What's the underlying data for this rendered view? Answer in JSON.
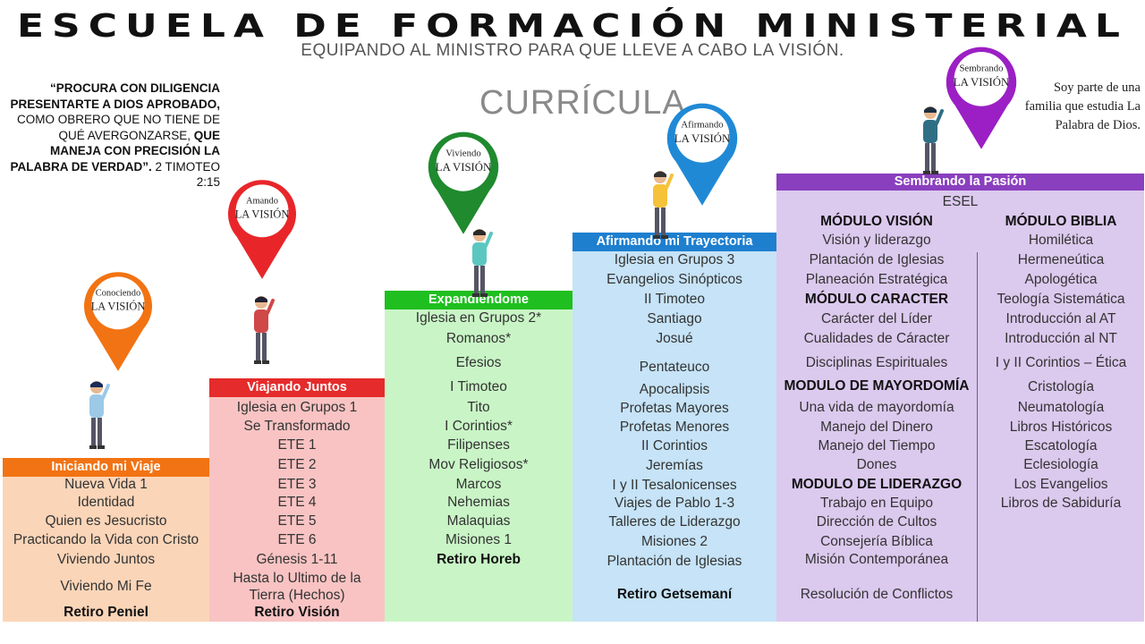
{
  "title": "ESCUELA DE FORMACIÓN MINISTERIAL",
  "subtitle": "EQUIPANDO AL MINISTRO PARA QUE LLEVE A CABO LA VISIÓN.",
  "curriculum_label": "CURRÍCULA",
  "quote": {
    "bold1": "“PROCURA CON DILIGENCIA PRESENTARTE A DIOS APROBADO,",
    "plain1": " COMO OBRERO QUE NO TIENE DE QUÉ AVERGONZARSE, ",
    "bold2": "QUE MANEJA CON PRECISIÓN LA PALABRA DE VERDAD”.",
    "ref": " 2 TIMOTEO 2:15"
  },
  "family_text": "Soy parte de una familia que estudia La Palabra de Dios.",
  "pins": [
    {
      "top": "Conociendo",
      "bottom": "LA VISIÓN",
      "color": "#f27313"
    },
    {
      "top": "Amando",
      "bottom": "LA VISIÓN",
      "color": "#e8262a"
    },
    {
      "top": "Viviendo",
      "bottom": "LA VISIÓN",
      "color": "#1f8a2e"
    },
    {
      "top": "Afirmando",
      "bottom": "LA VISIÓN",
      "color": "#2089d6"
    },
    {
      "top": "Sembrando",
      "bottom": "LA VISIÓN",
      "color": "#9b1fc4"
    }
  ],
  "columns": [
    {
      "header": "Iniciando mi Viaje",
      "header_color": "#f27313",
      "body_color": "#fbd5b8",
      "items": [
        "Nueva Vida 1",
        "Identidad",
        "Quien es Jesucristo",
        "Practicando la Vida con Cristo",
        "Viviendo Juntos",
        "Viviendo Mi Fe"
      ],
      "retreat": "Retiro Peniel"
    },
    {
      "header": "Viajando Juntos",
      "header_color": "#e52b2b",
      "body_color": "#f9c3c3",
      "items": [
        "Iglesia en Grupos 1",
        "Se Transformado",
        "ETE 1",
        "ETE 2",
        "ETE 3",
        "ETE 4",
        "ETE 5",
        "ETE 6",
        "Génesis 1-11",
        "Hasta lo Ultimo de la",
        "Tierra (Hechos)"
      ],
      "retreat": "Retiro Visión"
    },
    {
      "header": "Expandiéndome",
      "header_color": "#1fbf1f",
      "body_color": "#c9f5c6",
      "items": [
        "Iglesia en Grupos 2*",
        "Romanos*",
        "Efesios",
        "I Timoteo",
        "Tito",
        "I Corintios*",
        "Filipenses",
        "Mov Religiosos*",
        "Marcos",
        "Nehemias",
        "Malaquias",
        "Misiones 1"
      ],
      "retreat": "Retiro Horeb"
    },
    {
      "header": "Afirmando mi Trayectoria",
      "header_color": "#1e7fcf",
      "body_color": "#c6e3f7",
      "items": [
        "Iglesia en Grupos 3",
        "Evangelios Sinópticos",
        "II Timoteo",
        "Santiago",
        "Josué",
        "Pentateuco",
        "Apocalipsis",
        "Profetas Mayores",
        "Profetas Menores",
        "II Corintios",
        "Jeremías",
        "I y II Tesalonicenses",
        "Viajes de Pablo 1-3",
        "Talleres de Liderazgo",
        "Misiones 2",
        "Plantación de Iglesias"
      ],
      "retreat": "Retiro Getsemaní"
    }
  ],
  "esel": {
    "header": "Sembrando la Pasión",
    "header_color": "#8a3fbf",
    "body_color": "#dcc9ee",
    "name": "ESEL",
    "left_modules": [
      {
        "title": "MÓDULO VISIÓN",
        "items": [
          "Visión y liderazgo",
          "Plantación de Iglesias",
          "Planeación Estratégica"
        ]
      },
      {
        "title": "MÓDULO CARACTER",
        "items": [
          "Carácter del Líder",
          "Cualidades de Cáracter",
          "Disciplinas Espirituales"
        ]
      },
      {
        "title": "MODULO DE MAYORDOMÍA",
        "items": [
          "Una vida de mayordomía",
          "Manejo del Dinero",
          "Manejo del Tiempo",
          "Dones"
        ]
      },
      {
        "title": "MODULO DE LIDERAZGO",
        "items": [
          "Trabajo en Equipo",
          "Dirección de Cultos",
          "Consejería Bíblica",
          "Misión Contemporánea",
          "Resolución de Conflictos"
        ]
      }
    ],
    "right_module": {
      "title": "MÓDULO BIBLIA",
      "items": [
        "Homilética",
        "Hermeneútica",
        "Apologética",
        "Teología Sistemática",
        "Introducción al AT",
        "Introducción al NT",
        "I y II Corintios – Ética",
        "Cristología",
        "Neumatología",
        "Libros Históricos",
        "Escatología",
        "Eclesiología",
        "Los Evangelios",
        "Libros de Sabiduría"
      ]
    }
  }
}
